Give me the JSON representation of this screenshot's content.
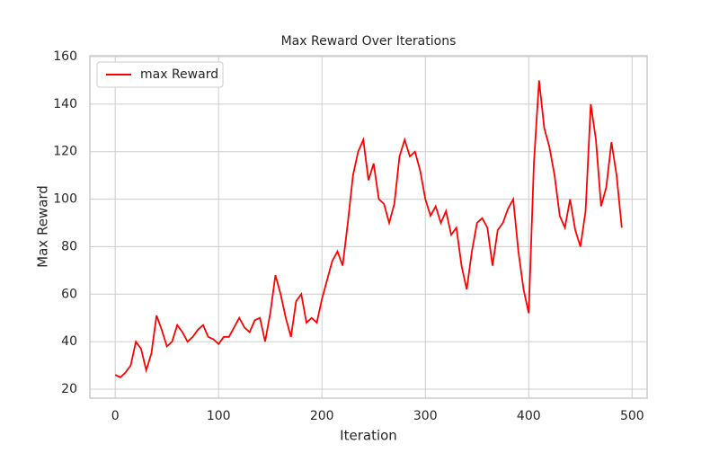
{
  "chart_data": {
    "type": "line",
    "title": "Max Reward Over Iterations",
    "x_label": "Iteration",
    "y_label": "Max Reward",
    "x": [
      0,
      5,
      10,
      15,
      20,
      25,
      30,
      35,
      40,
      45,
      50,
      55,
      60,
      65,
      70,
      75,
      80,
      85,
      90,
      95,
      100,
      105,
      110,
      115,
      120,
      125,
      130,
      135,
      140,
      145,
      150,
      155,
      160,
      165,
      170,
      175,
      180,
      185,
      190,
      195,
      200,
      205,
      210,
      215,
      220,
      225,
      230,
      235,
      240,
      245,
      250,
      255,
      260,
      265,
      270,
      275,
      280,
      285,
      290,
      295,
      300,
      305,
      310,
      315,
      320,
      325,
      330,
      335,
      340,
      345,
      350,
      355,
      360,
      365,
      370,
      375,
      380,
      385,
      390,
      395,
      400,
      405,
      410,
      415,
      420,
      425,
      430,
      435,
      440,
      445,
      450,
      455,
      460,
      465,
      470,
      475,
      480,
      485,
      490
    ],
    "series": [
      {
        "name": "max Reward",
        "color": "#ff0000",
        "values": [
          26,
          25,
          27,
          30,
          40,
          37,
          28,
          35,
          51,
          45,
          38,
          40,
          47,
          44,
          40,
          42,
          45,
          47,
          42,
          41,
          39,
          42,
          42,
          46,
          50,
          46,
          44,
          49,
          50,
          40,
          52,
          68,
          60,
          50,
          42,
          57,
          60,
          48,
          50,
          48,
          58,
          66,
          74,
          78,
          72,
          90,
          110,
          120,
          125,
          108,
          115,
          100,
          98,
          90,
          98,
          118,
          125,
          118,
          120,
          112,
          100,
          93,
          97,
          90,
          95,
          85,
          88,
          72,
          62,
          78,
          90,
          92,
          88,
          72,
          87,
          90,
          96,
          100,
          78,
          62,
          52,
          115,
          150,
          130,
          122,
          110,
          93,
          88,
          100,
          87,
          80,
          95,
          140,
          125,
          97,
          105,
          124,
          110,
          88
        ]
      }
    ],
    "xlim": [
      -24.5,
      514.5
    ],
    "ylim": [
      16.2,
      160.4
    ],
    "xticks": [
      0,
      100,
      200,
      300,
      400,
      500
    ],
    "yticks": [
      20,
      40,
      60,
      80,
      100,
      120,
      140,
      160
    ],
    "grid": true,
    "legend": "upper left"
  }
}
